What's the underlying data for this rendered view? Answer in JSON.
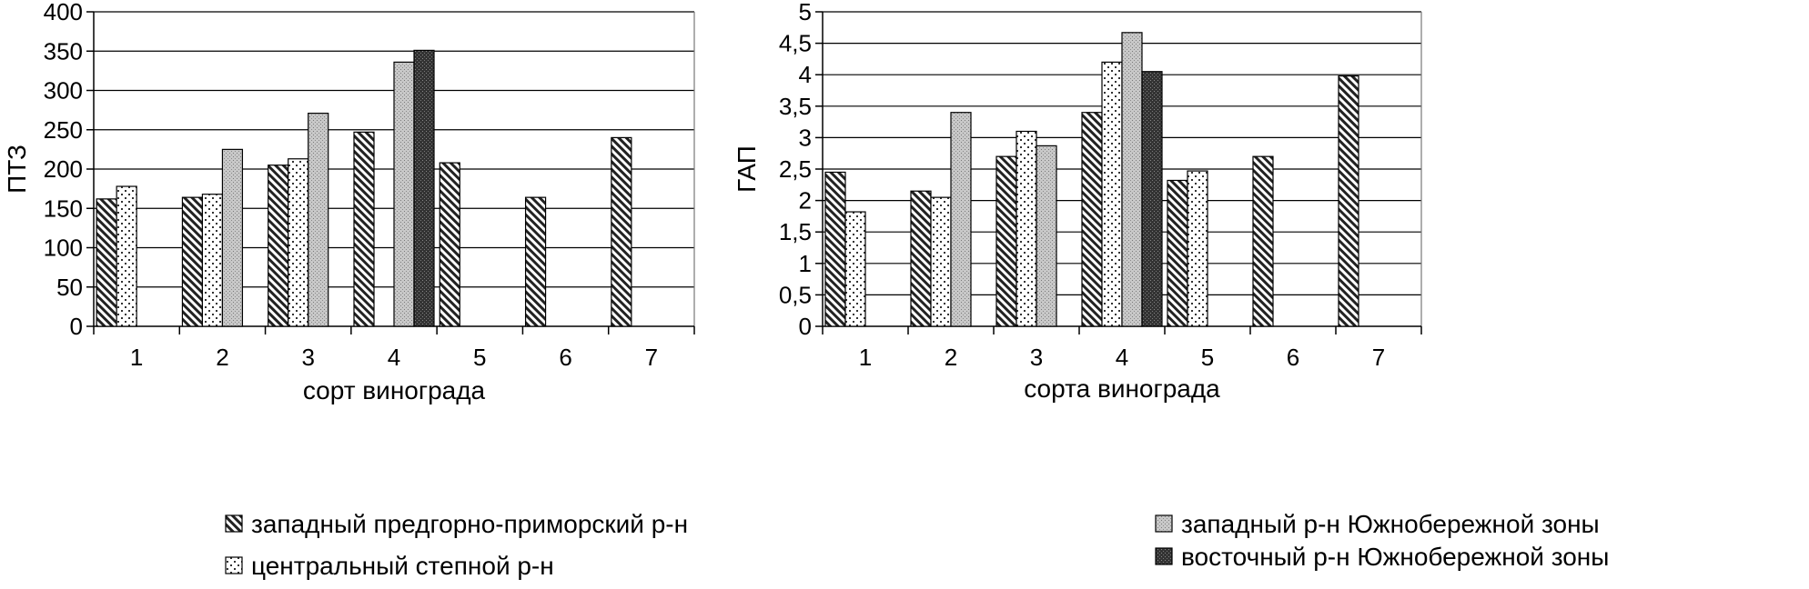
{
  "chart_data": [
    {
      "type": "bar",
      "categories": [
        "1",
        "2",
        "3",
        "4",
        "5",
        "6",
        "7"
      ],
      "ylabel": "ПТЗ",
      "xlabel": "сорт винограда",
      "ylim": [
        0,
        400
      ],
      "yticks": [
        "0",
        "50",
        "100",
        "150",
        "200",
        "250",
        "300",
        "350",
        "400"
      ],
      "grid": true,
      "series": [
        {
          "name": "западный предгорно-приморский р-н",
          "pattern": "diagonal",
          "values": [
            162,
            164,
            205,
            247,
            208,
            164,
            240
          ]
        },
        {
          "name": "центральный степной р-н",
          "pattern": "dots",
          "values": [
            178,
            168,
            213,
            null,
            null,
            null,
            null
          ]
        },
        {
          "name": "западный р-н Южнобережной зоны",
          "pattern": "stipple",
          "values": [
            null,
            225,
            271,
            336,
            null,
            null,
            null
          ]
        },
        {
          "name": "восточный р-н Южнобережной зоны",
          "pattern": "dark",
          "values": [
            null,
            null,
            null,
            351,
            null,
            null,
            null
          ]
        }
      ],
      "legend": [
        "западный предгорно-приморский р-н",
        "центральный степной р-н"
      ]
    },
    {
      "type": "bar",
      "categories": [
        "1",
        "2",
        "3",
        "4",
        "5",
        "6",
        "7"
      ],
      "ylabel": "ГАП",
      "xlabel": "сорта винограда",
      "ylim": [
        0,
        5
      ],
      "yticks": [
        "0",
        "0,5",
        "1",
        "1,5",
        "2",
        "2,5",
        "3",
        "3,5",
        "4",
        "4,5",
        "5"
      ],
      "grid": true,
      "series": [
        {
          "name": "западный предгорно-приморский р-н",
          "pattern": "diagonal",
          "values": [
            2.45,
            2.15,
            2.7,
            3.4,
            2.32,
            2.7,
            3.98
          ]
        },
        {
          "name": "центральный степной р-н",
          "pattern": "dots",
          "values": [
            1.82,
            2.05,
            3.1,
            4.2,
            2.47,
            null,
            null
          ]
        },
        {
          "name": "западный р-н Южнобережной зоны",
          "pattern": "stipple",
          "values": [
            null,
            3.4,
            2.87,
            4.67,
            null,
            null,
            null
          ]
        },
        {
          "name": "восточный р-н Южнобережной зоны",
          "pattern": "dark",
          "values": [
            null,
            null,
            null,
            4.05,
            null,
            null,
            null
          ]
        }
      ],
      "legend": [
        "западный р-н Южнобережной зоны",
        "восточный р-н Южнобережной зоны"
      ]
    }
  ]
}
